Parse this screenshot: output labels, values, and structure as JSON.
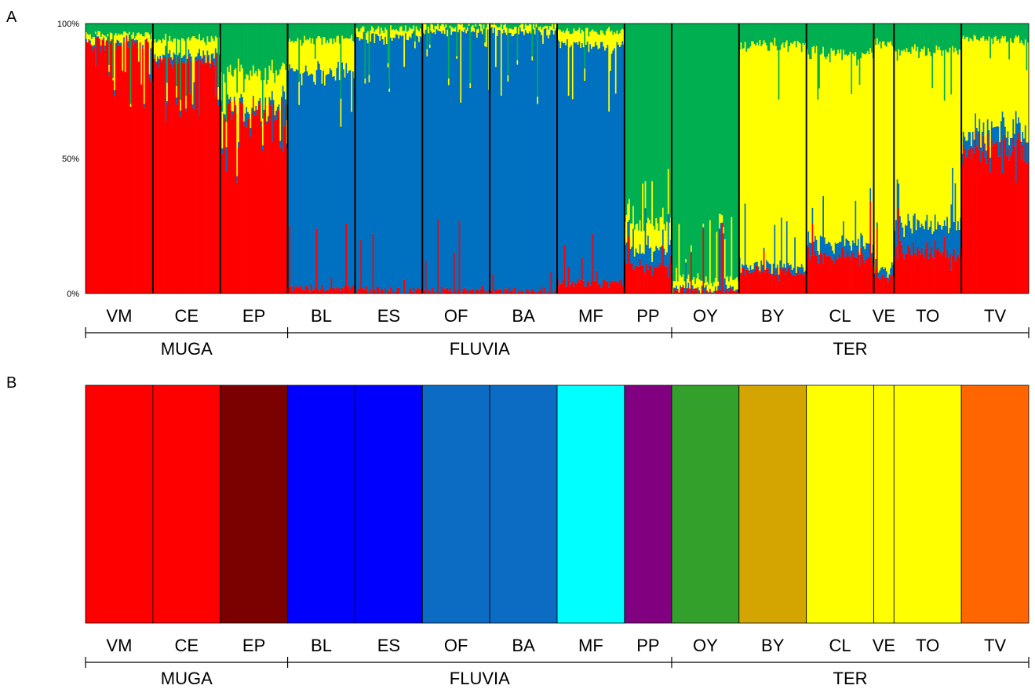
{
  "panels": {
    "a_letter": "A",
    "b_letter": "B"
  },
  "colors": {
    "cluster": {
      "red": "#ff0000",
      "blue": "#0070c0",
      "green": "#00b050",
      "yellow": "#ffff00"
    },
    "population": {
      "VM": "#ff0000",
      "CE": "#ff0000",
      "EP": "#7b0000",
      "BL": "#0000ff",
      "ES": "#0000ff",
      "OF": "#0c6bc2",
      "BA": "#0c6bc2",
      "MF": "#00ffff",
      "PP": "#800080",
      "OY": "#33a02c",
      "BY": "#d4a400",
      "CL": "#ffff00",
      "VE": "#ffff00",
      "TO": "#ffff00",
      "TV": "#ff6600"
    }
  },
  "chart_data": [
    {
      "type": "bar",
      "subtype": "stacked-100-percent-admixture",
      "panel": "A",
      "yticks": [
        "100%",
        "50%",
        "0%"
      ],
      "ylim": [
        0,
        100
      ],
      "clusters": [
        "red",
        "blue",
        "yellow",
        "green"
      ],
      "populations": [
        {
          "name": "VM",
          "river": "MUGA",
          "n": 50,
          "mean": {
            "red": 93,
            "blue": 1,
            "yellow": 2,
            "green": 4
          }
        },
        {
          "name": "CE",
          "river": "MUGA",
          "n": 50,
          "mean": {
            "red": 86,
            "blue": 2,
            "yellow": 6,
            "green": 6
          }
        },
        {
          "name": "EP",
          "river": "MUGA",
          "n": 50,
          "mean": {
            "red": 68,
            "blue": 2,
            "yellow": 12,
            "green": 18
          }
        },
        {
          "name": "BL",
          "river": "FLUVIA",
          "n": 50,
          "mean": {
            "red": 2,
            "blue": 80,
            "yellow": 12,
            "green": 6
          }
        },
        {
          "name": "ES",
          "river": "FLUVIA",
          "n": 50,
          "mean": {
            "red": 1,
            "blue": 94,
            "yellow": 3,
            "green": 2
          }
        },
        {
          "name": "OF",
          "river": "FLUVIA",
          "n": 50,
          "mean": {
            "red": 1,
            "blue": 96,
            "yellow": 2,
            "green": 1
          }
        },
        {
          "name": "BA",
          "river": "FLUVIA",
          "n": 50,
          "mean": {
            "red": 1,
            "blue": 96,
            "yellow": 2,
            "green": 1
          }
        },
        {
          "name": "MF",
          "river": "FLUVIA",
          "n": 50,
          "mean": {
            "red": 4,
            "blue": 88,
            "yellow": 5,
            "green": 3
          }
        },
        {
          "name": "PP",
          "river": "FLUVIA",
          "n": 35,
          "mean": {
            "red": 10,
            "blue": 6,
            "yellow": 9,
            "green": 75
          }
        },
        {
          "name": "OY",
          "river": "TER",
          "n": 50,
          "mean": {
            "red": 1,
            "blue": 1,
            "yellow": 3,
            "green": 95
          }
        },
        {
          "name": "BY",
          "river": "TER",
          "n": 50,
          "mean": {
            "red": 8,
            "blue": 2,
            "yellow": 82,
            "green": 8
          }
        },
        {
          "name": "CL",
          "river": "TER",
          "n": 50,
          "mean": {
            "red": 14,
            "blue": 5,
            "yellow": 70,
            "green": 11
          }
        },
        {
          "name": "VE",
          "river": "TER",
          "n": 15,
          "mean": {
            "red": 6,
            "blue": 3,
            "yellow": 84,
            "green": 7
          }
        },
        {
          "name": "TO",
          "river": "TER",
          "n": 50,
          "mean": {
            "red": 16,
            "blue": 10,
            "yellow": 64,
            "green": 10
          }
        },
        {
          "name": "TV",
          "river": "TER",
          "n": 50,
          "mean": {
            "red": 55,
            "blue": 6,
            "yellow": 33,
            "green": 6
          }
        }
      ]
    },
    {
      "type": "bar",
      "subtype": "population-assignment",
      "panel": "B",
      "populations": [
        "VM",
        "CE",
        "EP",
        "BL",
        "ES",
        "OF",
        "BA",
        "MF",
        "PP",
        "OY",
        "BY",
        "CL",
        "VE",
        "TO",
        "TV"
      ]
    }
  ],
  "rivers": [
    {
      "name": "MUGA",
      "populations": [
        "VM",
        "CE",
        "EP"
      ]
    },
    {
      "name": "FLUVIA",
      "populations": [
        "BL",
        "ES",
        "OF",
        "BA",
        "MF",
        "PP"
      ]
    },
    {
      "name": "TER",
      "populations": [
        "OY",
        "BY",
        "CL",
        "VE",
        "TO",
        "TV"
      ]
    }
  ]
}
